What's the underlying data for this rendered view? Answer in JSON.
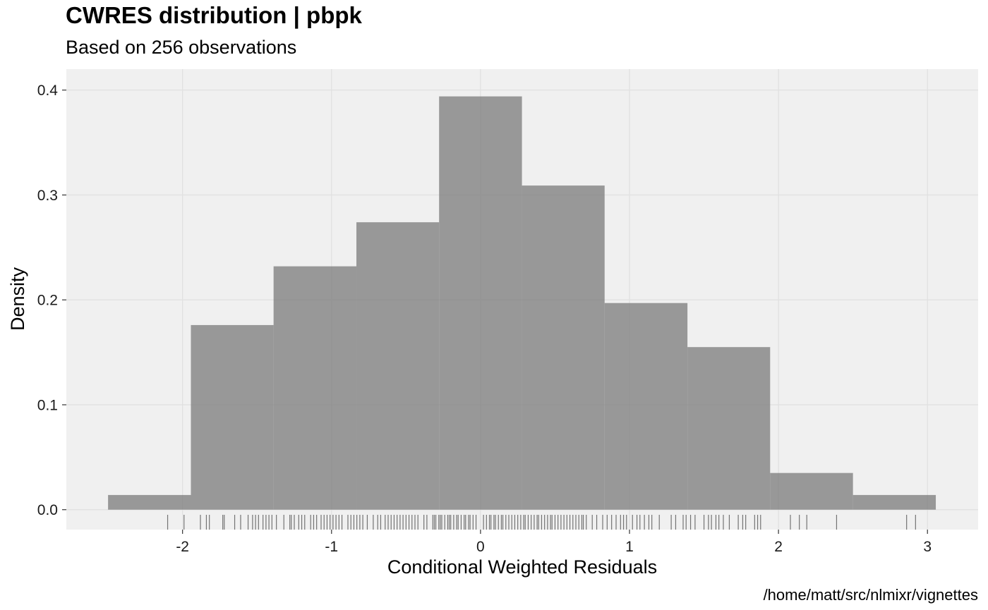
{
  "chart_data": {
    "type": "bar",
    "title": "CWRES distribution | pbpk",
    "subtitle": "Based on 256 observations",
    "xlabel": "Conditional Weighted Residuals",
    "ylabel": "Density",
    "caption": "/home/matt/src/nlmixr/vignettes",
    "xlim": [
      -2.78,
      3.34
    ],
    "ylim": [
      -0.019,
      0.42
    ],
    "x_ticks": [
      -2,
      -1,
      0,
      1,
      2,
      3
    ],
    "x_tick_labels": [
      "-2",
      "-1",
      "0",
      "1",
      "2",
      "3"
    ],
    "y_ticks": [
      0.0,
      0.1,
      0.2,
      0.3,
      0.4
    ],
    "y_tick_labels": [
      "0.0",
      "0.1",
      "0.2",
      "0.3",
      "0.4"
    ],
    "bins": [
      {
        "x0": -2.5,
        "x1": -1.944,
        "density": 0.014
      },
      {
        "x0": -1.944,
        "x1": -1.389,
        "density": 0.176
      },
      {
        "x0": -1.389,
        "x1": -0.833,
        "density": 0.232
      },
      {
        "x0": -0.833,
        "x1": -0.278,
        "density": 0.274
      },
      {
        "x0": -0.278,
        "x1": 0.278,
        "density": 0.394
      },
      {
        "x0": 0.278,
        "x1": 0.833,
        "density": 0.309
      },
      {
        "x0": 0.833,
        "x1": 1.389,
        "density": 0.197
      },
      {
        "x0": 1.389,
        "x1": 1.944,
        "density": 0.155
      },
      {
        "x0": 1.944,
        "x1": 2.5,
        "density": 0.035
      },
      {
        "x0": 2.5,
        "x1": 3.056,
        "density": 0.014
      }
    ],
    "rug": [
      -2.1,
      -1.99,
      -1.88,
      -1.84,
      -1.82,
      -1.73,
      -1.72,
      -1.65,
      -1.61,
      -1.56,
      -1.53,
      -1.51,
      -1.49,
      -1.46,
      -1.44,
      -1.42,
      -1.4,
      -1.37,
      -1.32,
      -1.28,
      -1.27,
      -1.25,
      -1.22,
      -1.2,
      -1.18,
      -1.14,
      -1.12,
      -1.1,
      -1.07,
      -1.05,
      -1.03,
      -1.01,
      -0.99,
      -0.97,
      -0.95,
      -0.93,
      -0.89,
      -0.87,
      -0.85,
      -0.83,
      -0.81,
      -0.79,
      -0.76,
      -0.72,
      -0.69,
      -0.67,
      -0.64,
      -0.62,
      -0.6,
      -0.58,
      -0.56,
      -0.54,
      -0.52,
      -0.5,
      -0.48,
      -0.46,
      -0.44,
      -0.42,
      -0.38,
      -0.36,
      -0.32,
      -0.31,
      -0.3,
      -0.28,
      -0.27,
      -0.26,
      -0.24,
      -0.22,
      -0.21,
      -0.2,
      -0.18,
      -0.16,
      -0.15,
      -0.13,
      -0.11,
      -0.1,
      -0.08,
      -0.07,
      -0.05,
      -0.03,
      0.02,
      0.04,
      0.06,
      0.07,
      0.09,
      0.1,
      0.12,
      0.14,
      0.15,
      0.17,
      0.19,
      0.21,
      0.23,
      0.25,
      0.27,
      0.29,
      0.3,
      0.32,
      0.34,
      0.36,
      0.38,
      0.39,
      0.41,
      0.43,
      0.45,
      0.47,
      0.48,
      0.5,
      0.52,
      0.54,
      0.56,
      0.58,
      0.6,
      0.62,
      0.64,
      0.66,
      0.68,
      0.69,
      0.71,
      0.75,
      0.78,
      0.82,
      0.85,
      0.88,
      0.91,
      0.94,
      0.96,
      0.98,
      1.02,
      1.05,
      1.07,
      1.1,
      1.13,
      1.15,
      1.2,
      1.28,
      1.31,
      1.36,
      1.38,
      1.41,
      1.44,
      1.5,
      1.53,
      1.55,
      1.58,
      1.6,
      1.63,
      1.67,
      1.73,
      1.76,
      1.78,
      1.84,
      1.86,
      1.88,
      2.08,
      2.14,
      2.19,
      2.39,
      2.86,
      2.92
    ]
  }
}
